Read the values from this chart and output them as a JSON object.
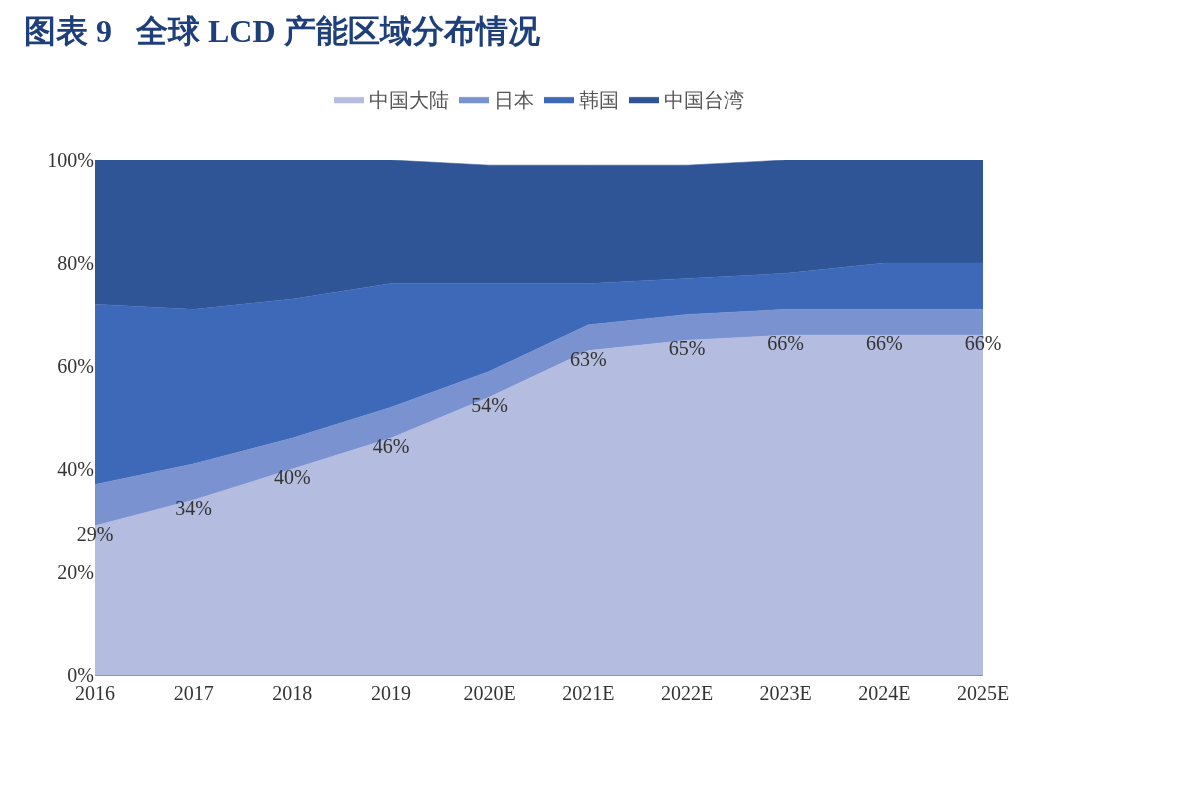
{
  "chart_data": {
    "type": "area",
    "title": "图表 9   全球 LCD 产能区域分布情况",
    "categories": [
      "2016",
      "2017",
      "2018",
      "2019",
      "2020E",
      "2021E",
      "2022E",
      "2023E",
      "2024E",
      "2025E"
    ],
    "stacked": true,
    "series": [
      {
        "name": "中国大陆",
        "color": "#b4bde0",
        "values": [
          29,
          34,
          40,
          46,
          54,
          63,
          65,
          66,
          66,
          66
        ],
        "value_labels": [
          "29%",
          "34%",
          "40%",
          "46%",
          "54%",
          "63%",
          "65%",
          "66%",
          "66%",
          "66%"
        ]
      },
      {
        "name": "日本",
        "color": "#7b92d0",
        "values": [
          8,
          7,
          6,
          6,
          5,
          5,
          5,
          5,
          5,
          5
        ]
      },
      {
        "name": "韩国",
        "color": "#3d69b8",
        "values": [
          35,
          30,
          27,
          24,
          17,
          8,
          7,
          7,
          9,
          9
        ]
      },
      {
        "name": "中国台湾",
        "color": "#2f5597",
        "values": [
          28,
          29,
          27,
          24,
          23,
          23,
          22,
          22,
          20,
          20
        ]
      }
    ],
    "ylim": [
      0,
      100
    ],
    "yticks": [
      {
        "value": 0,
        "label": "0%"
      },
      {
        "value": 20,
        "label": "20%"
      },
      {
        "value": 40,
        "label": "40%"
      },
      {
        "value": 60,
        "label": "60%"
      },
      {
        "value": 80,
        "label": "80%"
      },
      {
        "value": 100,
        "label": "100%"
      }
    ],
    "legend": "top"
  }
}
